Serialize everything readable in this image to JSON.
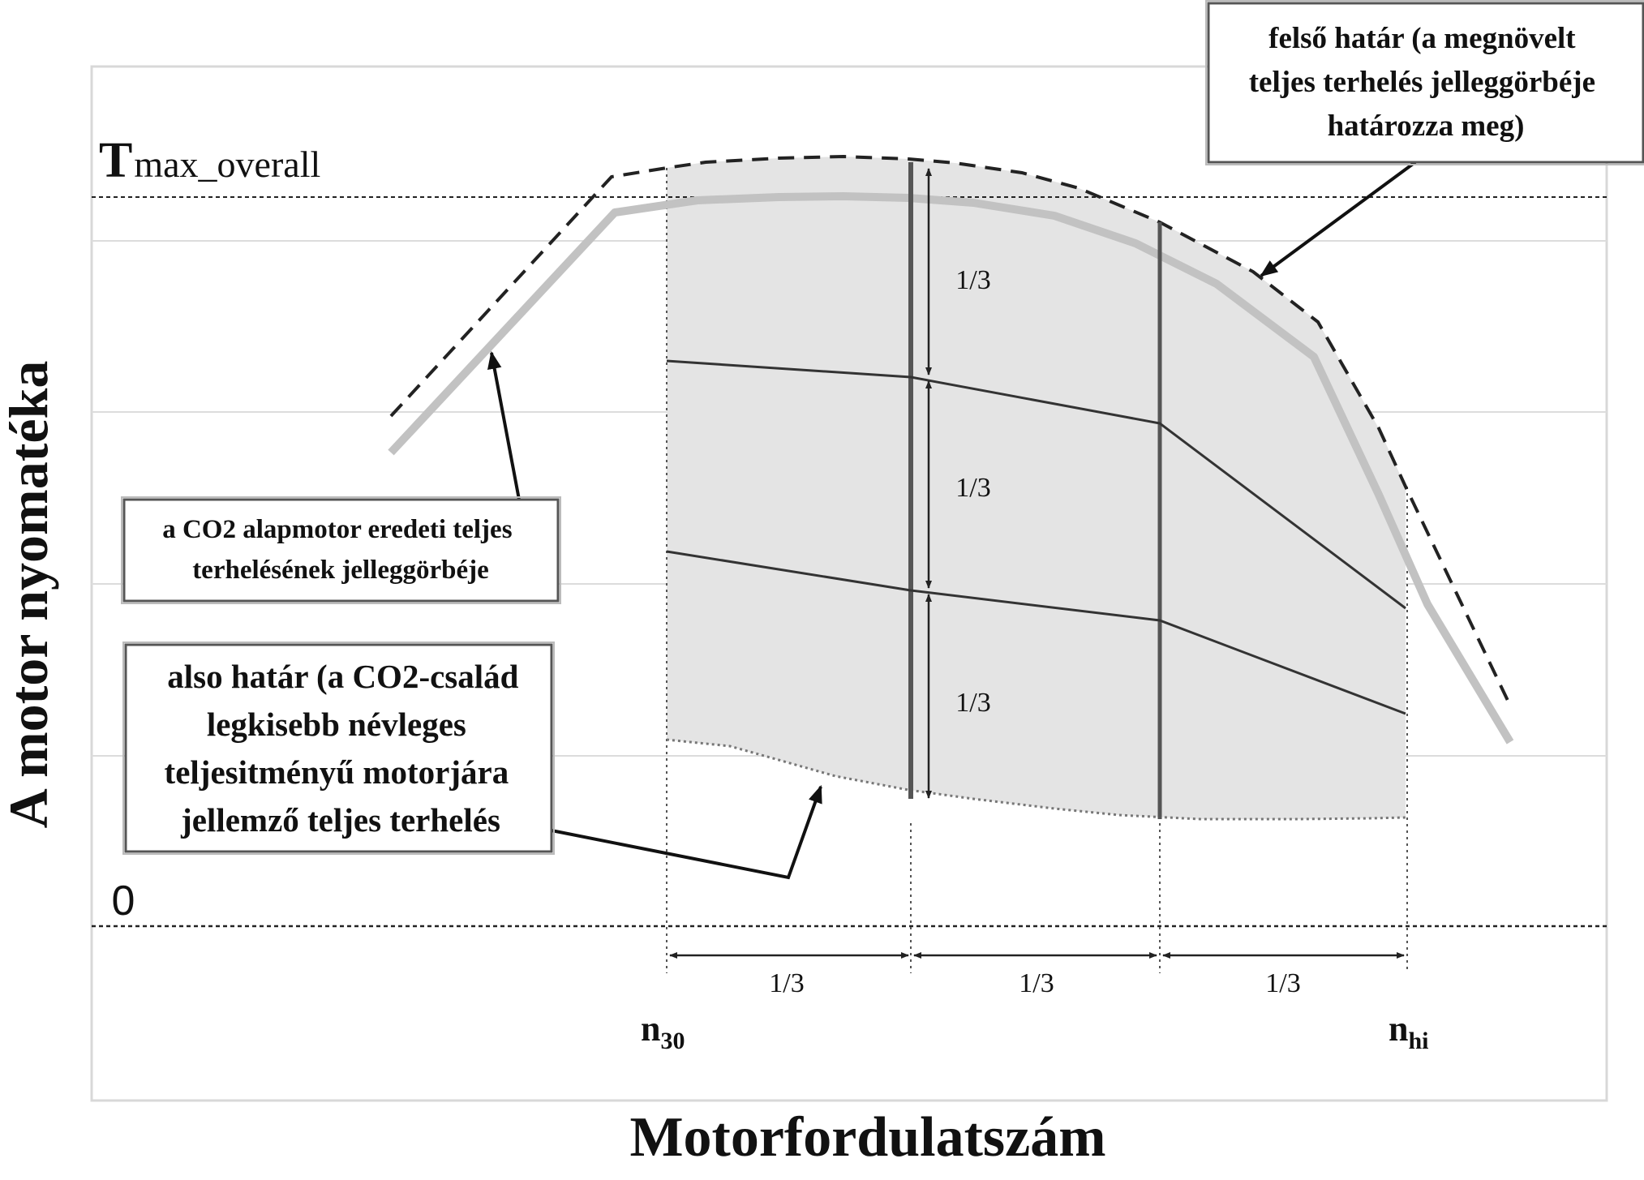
{
  "diagram": {
    "y_axis_label": "A motor nyomatéka",
    "x_axis_label": "Motorfordulatszám",
    "t_max": {
      "main": "T",
      "sub": "max_overall"
    },
    "zero_label": "0",
    "fraction": "1/3",
    "n30": {
      "main": "n",
      "sub": "30"
    },
    "nhi": {
      "main": "n",
      "sub": "hi"
    },
    "upper_box": [
      "felső határ (a megnövelt",
      "teljes terhelés jelleggörbéje",
      "határozza meg)"
    ],
    "orig_box": [
      "a CO2 alapmotor eredeti teljes",
      "terhelésének jelleggörbéje"
    ],
    "lower_box": [
      "also határ (a CO2-család",
      "legkisebb névleges",
      "teljesitményű motorjára",
      "jellemző teljes terhelés"
    ]
  },
  "colors": {
    "shaded_area": "#e4e4e4",
    "original_curve": "#c2c2c2",
    "line_dark": "#333333",
    "grid": "#dcdcdc"
  }
}
